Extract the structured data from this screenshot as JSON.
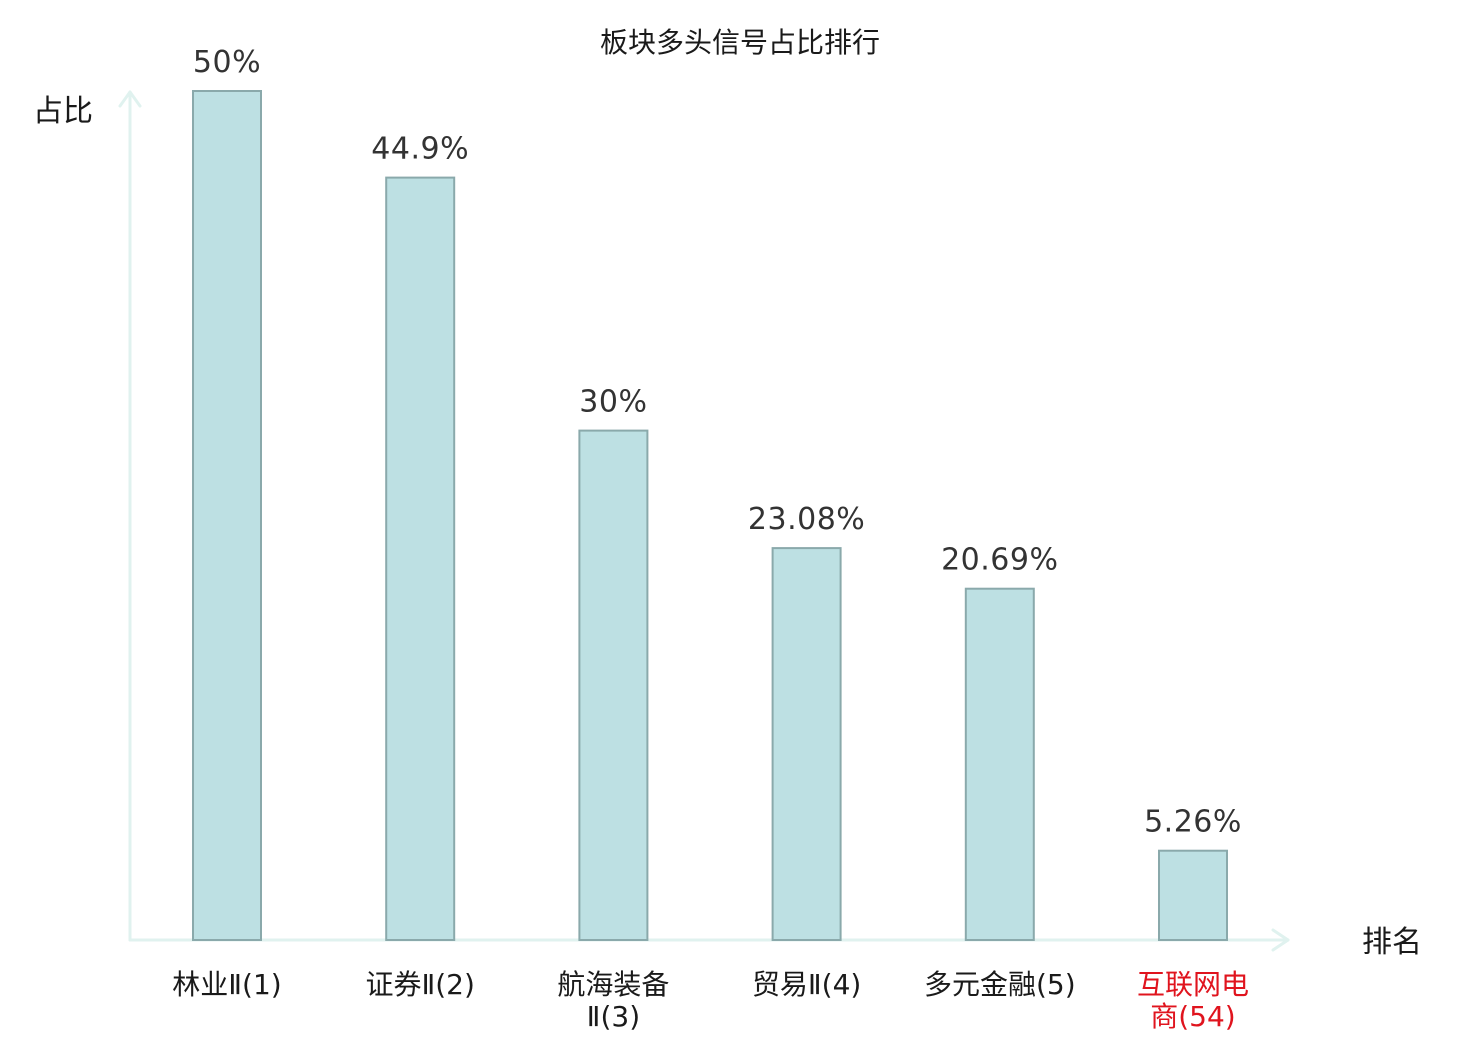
{
  "chart_data": {
    "type": "bar",
    "title": "板块多头信号占比排行",
    "ylabel": "占比",
    "xlabel": "排名",
    "categories": [
      {
        "name": "林业Ⅱ",
        "rank": "(1)",
        "lines": [
          "林业Ⅱ(1)"
        ],
        "highlight": false
      },
      {
        "name": "证券Ⅱ",
        "rank": "(2)",
        "lines": [
          "证券Ⅱ(2)"
        ],
        "highlight": false
      },
      {
        "name": "航海装备Ⅱ",
        "rank": "(3)",
        "lines": [
          "航海装备",
          "Ⅱ(3)"
        ],
        "highlight": false
      },
      {
        "name": "贸易Ⅱ",
        "rank": "(4)",
        "lines": [
          "贸易Ⅱ(4)"
        ],
        "highlight": false
      },
      {
        "name": "多元金融",
        "rank": "(5)",
        "lines": [
          "多元金融(5)"
        ],
        "highlight": false
      },
      {
        "name": "互联网电商",
        "rank": "(54)",
        "lines": [
          "互联网电",
          "商(54)"
        ],
        "highlight": true
      }
    ],
    "values": [
      50,
      44.9,
      30,
      23.08,
      20.69,
      5.26
    ],
    "value_labels": [
      "50%",
      "44.9%",
      "30%",
      "23.08%",
      "20.69%",
      "5.26%"
    ],
    "unit": "%",
    "ylim": [
      0,
      50
    ],
    "grid": false,
    "legend": "none",
    "colors": {
      "bar_fill": "#bde0e3",
      "bar_stroke": "#8aa9ab",
      "axis": "#e0f2ef",
      "highlight_label": "#e0141e"
    }
  }
}
